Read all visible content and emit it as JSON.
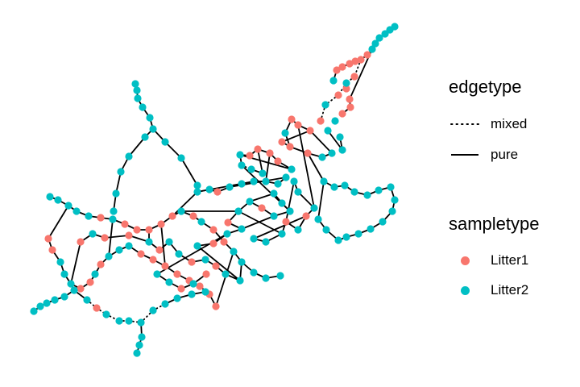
{
  "legend": {
    "edgetype": {
      "title": "edgetype",
      "items": [
        {
          "label": "mixed",
          "style": "dotted"
        },
        {
          "label": "pure",
          "style": "solid"
        }
      ]
    },
    "sampletype": {
      "title": "sampletype",
      "items": [
        {
          "label": "Litter1",
          "color": "#F8766D"
        },
        {
          "label": "Litter2",
          "color": "#00BFC4"
        }
      ]
    }
  },
  "colors": {
    "litter1": "#F8766D",
    "litter2": "#00BFC4",
    "edge": "#000000"
  }
}
